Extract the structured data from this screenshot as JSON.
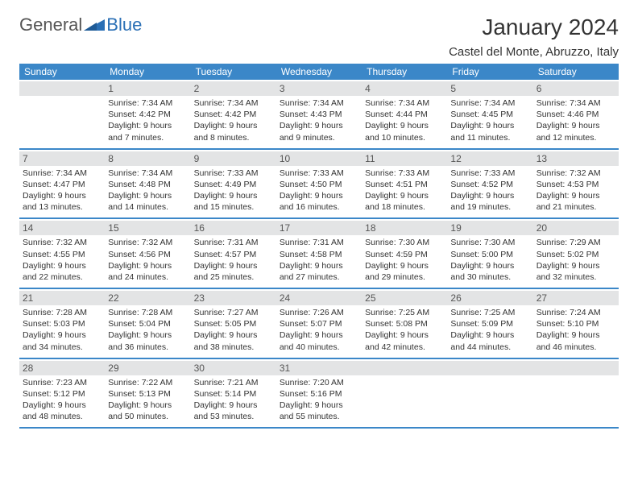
{
  "logo": {
    "part1": "General",
    "part2": "Blue"
  },
  "title": "January 2024",
  "location": "Castel del Monte, Abruzzo, Italy",
  "colors": {
    "header_bg": "#3b87c8",
    "daynum_bg": "#e3e4e5",
    "logo_accent": "#2a6fb5"
  },
  "day_names": [
    "Sunday",
    "Monday",
    "Tuesday",
    "Wednesday",
    "Thursday",
    "Friday",
    "Saturday"
  ],
  "weeks": [
    [
      {
        "n": "",
        "sr": "",
        "ss": "",
        "dl": ""
      },
      {
        "n": "1",
        "sr": "Sunrise: 7:34 AM",
        "ss": "Sunset: 4:42 PM",
        "dl": "Daylight: 9 hours and 7 minutes."
      },
      {
        "n": "2",
        "sr": "Sunrise: 7:34 AM",
        "ss": "Sunset: 4:42 PM",
        "dl": "Daylight: 9 hours and 8 minutes."
      },
      {
        "n": "3",
        "sr": "Sunrise: 7:34 AM",
        "ss": "Sunset: 4:43 PM",
        "dl": "Daylight: 9 hours and 9 minutes."
      },
      {
        "n": "4",
        "sr": "Sunrise: 7:34 AM",
        "ss": "Sunset: 4:44 PM",
        "dl": "Daylight: 9 hours and 10 minutes."
      },
      {
        "n": "5",
        "sr": "Sunrise: 7:34 AM",
        "ss": "Sunset: 4:45 PM",
        "dl": "Daylight: 9 hours and 11 minutes."
      },
      {
        "n": "6",
        "sr": "Sunrise: 7:34 AM",
        "ss": "Sunset: 4:46 PM",
        "dl": "Daylight: 9 hours and 12 minutes."
      }
    ],
    [
      {
        "n": "7",
        "sr": "Sunrise: 7:34 AM",
        "ss": "Sunset: 4:47 PM",
        "dl": "Daylight: 9 hours and 13 minutes."
      },
      {
        "n": "8",
        "sr": "Sunrise: 7:34 AM",
        "ss": "Sunset: 4:48 PM",
        "dl": "Daylight: 9 hours and 14 minutes."
      },
      {
        "n": "9",
        "sr": "Sunrise: 7:33 AM",
        "ss": "Sunset: 4:49 PM",
        "dl": "Daylight: 9 hours and 15 minutes."
      },
      {
        "n": "10",
        "sr": "Sunrise: 7:33 AM",
        "ss": "Sunset: 4:50 PM",
        "dl": "Daylight: 9 hours and 16 minutes."
      },
      {
        "n": "11",
        "sr": "Sunrise: 7:33 AM",
        "ss": "Sunset: 4:51 PM",
        "dl": "Daylight: 9 hours and 18 minutes."
      },
      {
        "n": "12",
        "sr": "Sunrise: 7:33 AM",
        "ss": "Sunset: 4:52 PM",
        "dl": "Daylight: 9 hours and 19 minutes."
      },
      {
        "n": "13",
        "sr": "Sunrise: 7:32 AM",
        "ss": "Sunset: 4:53 PM",
        "dl": "Daylight: 9 hours and 21 minutes."
      }
    ],
    [
      {
        "n": "14",
        "sr": "Sunrise: 7:32 AM",
        "ss": "Sunset: 4:55 PM",
        "dl": "Daylight: 9 hours and 22 minutes."
      },
      {
        "n": "15",
        "sr": "Sunrise: 7:32 AM",
        "ss": "Sunset: 4:56 PM",
        "dl": "Daylight: 9 hours and 24 minutes."
      },
      {
        "n": "16",
        "sr": "Sunrise: 7:31 AM",
        "ss": "Sunset: 4:57 PM",
        "dl": "Daylight: 9 hours and 25 minutes."
      },
      {
        "n": "17",
        "sr": "Sunrise: 7:31 AM",
        "ss": "Sunset: 4:58 PM",
        "dl": "Daylight: 9 hours and 27 minutes."
      },
      {
        "n": "18",
        "sr": "Sunrise: 7:30 AM",
        "ss": "Sunset: 4:59 PM",
        "dl": "Daylight: 9 hours and 29 minutes."
      },
      {
        "n": "19",
        "sr": "Sunrise: 7:30 AM",
        "ss": "Sunset: 5:00 PM",
        "dl": "Daylight: 9 hours and 30 minutes."
      },
      {
        "n": "20",
        "sr": "Sunrise: 7:29 AM",
        "ss": "Sunset: 5:02 PM",
        "dl": "Daylight: 9 hours and 32 minutes."
      }
    ],
    [
      {
        "n": "21",
        "sr": "Sunrise: 7:28 AM",
        "ss": "Sunset: 5:03 PM",
        "dl": "Daylight: 9 hours and 34 minutes."
      },
      {
        "n": "22",
        "sr": "Sunrise: 7:28 AM",
        "ss": "Sunset: 5:04 PM",
        "dl": "Daylight: 9 hours and 36 minutes."
      },
      {
        "n": "23",
        "sr": "Sunrise: 7:27 AM",
        "ss": "Sunset: 5:05 PM",
        "dl": "Daylight: 9 hours and 38 minutes."
      },
      {
        "n": "24",
        "sr": "Sunrise: 7:26 AM",
        "ss": "Sunset: 5:07 PM",
        "dl": "Daylight: 9 hours and 40 minutes."
      },
      {
        "n": "25",
        "sr": "Sunrise: 7:25 AM",
        "ss": "Sunset: 5:08 PM",
        "dl": "Daylight: 9 hours and 42 minutes."
      },
      {
        "n": "26",
        "sr": "Sunrise: 7:25 AM",
        "ss": "Sunset: 5:09 PM",
        "dl": "Daylight: 9 hours and 44 minutes."
      },
      {
        "n": "27",
        "sr": "Sunrise: 7:24 AM",
        "ss": "Sunset: 5:10 PM",
        "dl": "Daylight: 9 hours and 46 minutes."
      }
    ],
    [
      {
        "n": "28",
        "sr": "Sunrise: 7:23 AM",
        "ss": "Sunset: 5:12 PM",
        "dl": "Daylight: 9 hours and 48 minutes."
      },
      {
        "n": "29",
        "sr": "Sunrise: 7:22 AM",
        "ss": "Sunset: 5:13 PM",
        "dl": "Daylight: 9 hours and 50 minutes."
      },
      {
        "n": "30",
        "sr": "Sunrise: 7:21 AM",
        "ss": "Sunset: 5:14 PM",
        "dl": "Daylight: 9 hours and 53 minutes."
      },
      {
        "n": "31",
        "sr": "Sunrise: 7:20 AM",
        "ss": "Sunset: 5:16 PM",
        "dl": "Daylight: 9 hours and 55 minutes."
      },
      {
        "n": "",
        "sr": "",
        "ss": "",
        "dl": ""
      },
      {
        "n": "",
        "sr": "",
        "ss": "",
        "dl": ""
      },
      {
        "n": "",
        "sr": "",
        "ss": "",
        "dl": ""
      }
    ]
  ]
}
